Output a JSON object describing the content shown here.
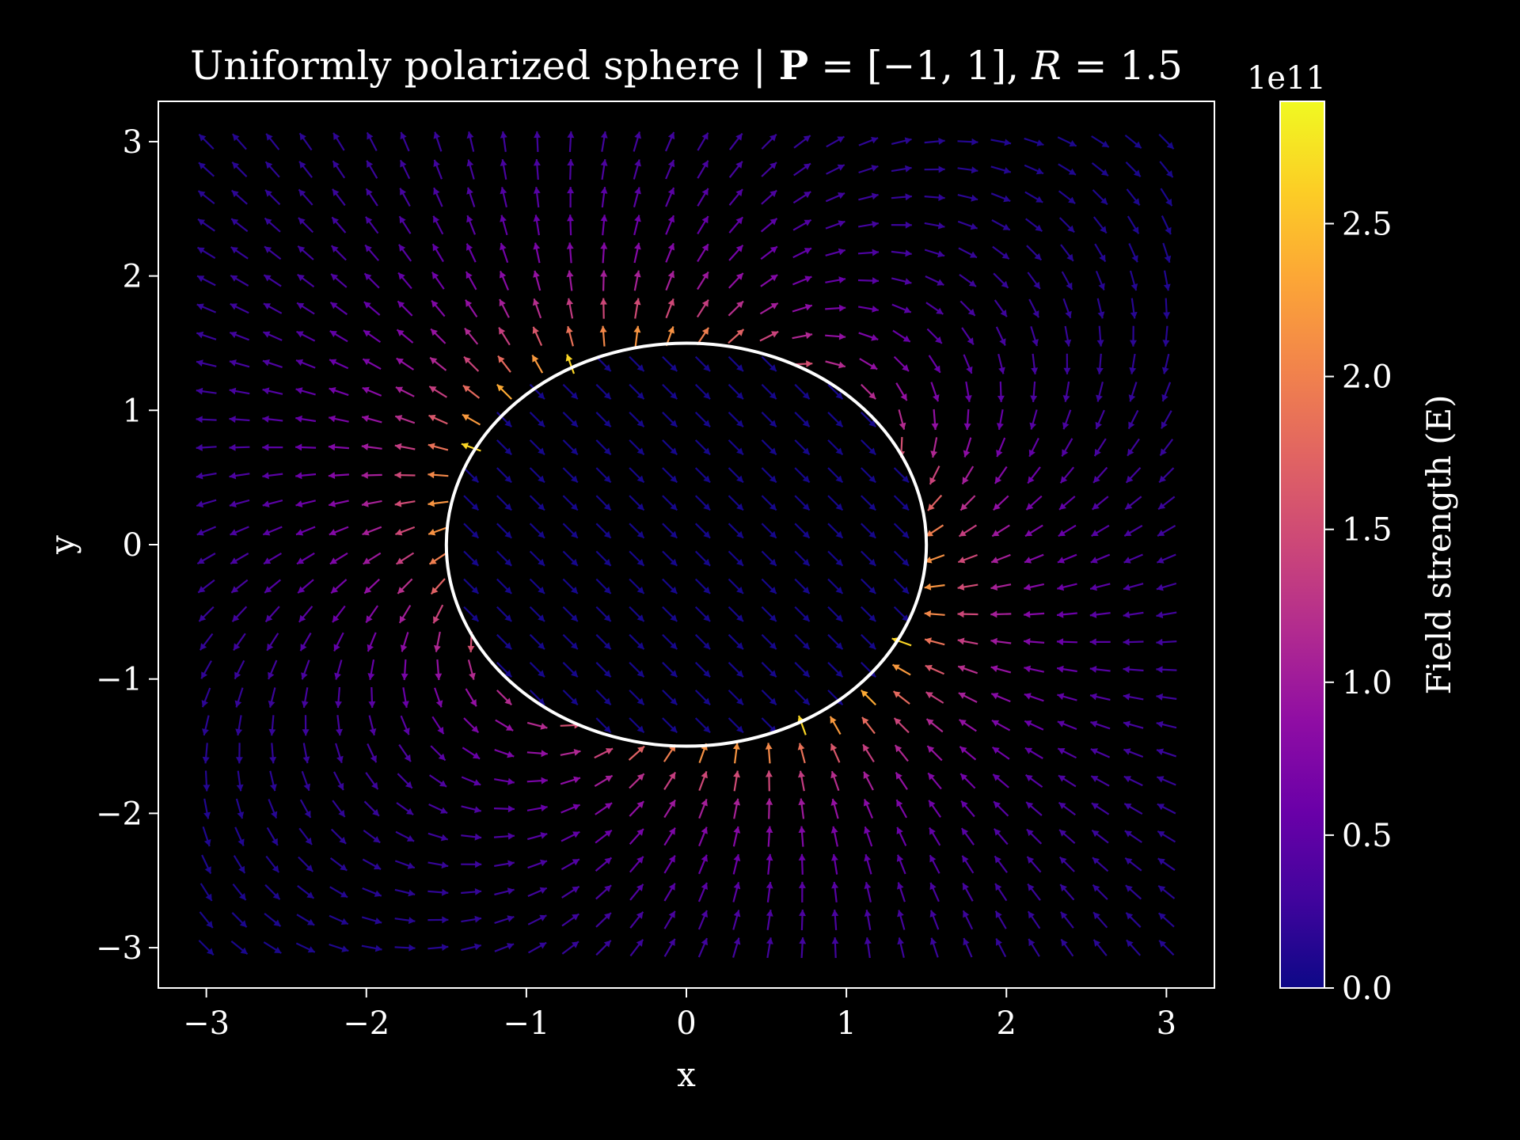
{
  "chart_data": {
    "type": "quiver",
    "title": "Uniformly polarized sphere | P = [−1, 1], R = 1.5",
    "title_parts": {
      "prefix": "Uniformly polarized sphere | ",
      "p_symbol": "P",
      "p_value": " = [−1, 1], ",
      "r_symbol": "R",
      "r_value": " = 1.5"
    },
    "xlabel": "x",
    "ylabel": "y",
    "xlim": [
      -3.3,
      3.3
    ],
    "ylim": [
      -3.3,
      3.3
    ],
    "xticks": [
      -3,
      -2,
      -1,
      0,
      1,
      2,
      3
    ],
    "yticks": [
      -3,
      -2,
      -1,
      0,
      1,
      2,
      3
    ],
    "xtick_labels": [
      "−3",
      "−2",
      "−1",
      "0",
      "1",
      "2",
      "3"
    ],
    "ytick_labels": [
      "−3",
      "−2",
      "−1",
      "0",
      "1",
      "2",
      "3"
    ],
    "grid": false,
    "polarization": [
      -1,
      1
    ],
    "sphere_radius": 1.5,
    "sphere_outline_color": "#ffffff",
    "arrow_grid": {
      "start": -3,
      "stop": 3,
      "count": 30
    },
    "colormap": "plasma",
    "colorbar": {
      "label": "Field strength (E)",
      "offset_text": "1e11",
      "range": [
        0,
        2.9
      ],
      "ticks": [
        0.0,
        0.5,
        1.0,
        1.5,
        2.0,
        2.5
      ],
      "tick_labels": [
        "0.0",
        "0.5",
        "1.0",
        "1.5",
        "2.0",
        "2.5"
      ]
    },
    "field_scale_1e11": {
      "interior_magnitude": 0.05,
      "surface_max_magnitude": 2.9
    }
  },
  "colors": {
    "background": "#000000",
    "axes": "#ffffff"
  }
}
